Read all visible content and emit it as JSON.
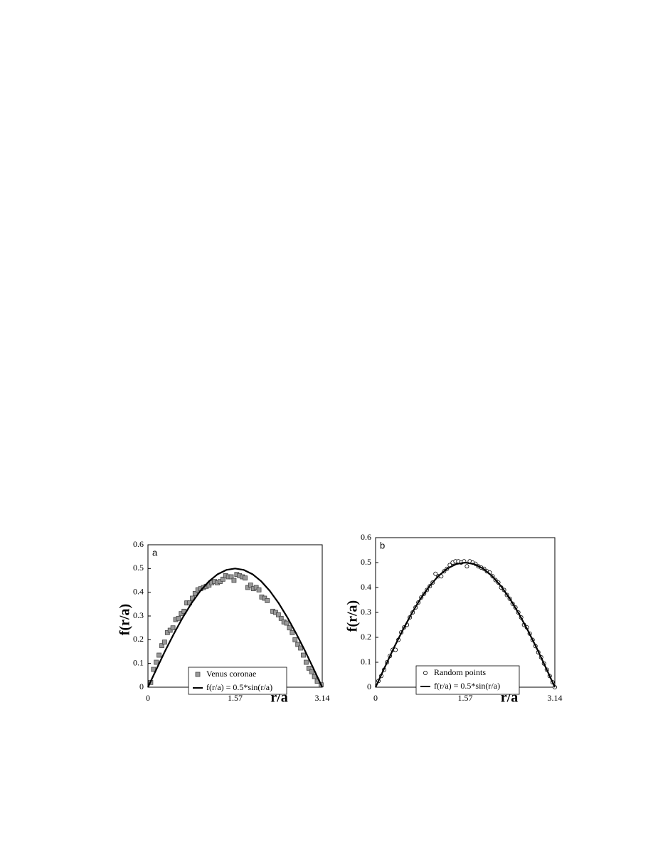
{
  "chart_data": [
    {
      "type": "scatter",
      "panel": "a",
      "x_label": "r/a",
      "y_label": "f(r/a)",
      "xlim": [
        0,
        3.14
      ],
      "xticks": [
        0,
        1.57,
        3.14
      ],
      "ylim": [
        0,
        0.6
      ],
      "yticks": [
        0,
        0.1,
        0.2,
        0.3,
        0.4,
        0.5,
        0.6
      ],
      "series": [
        {
          "name": "Venus coronae",
          "mark": "square",
          "color": "#999999",
          "x": [
            0.05,
            0.1,
            0.15,
            0.2,
            0.25,
            0.3,
            0.35,
            0.4,
            0.45,
            0.5,
            0.55,
            0.6,
            0.65,
            0.7,
            0.75,
            0.8,
            0.85,
            0.9,
            0.95,
            1.0,
            1.05,
            1.1,
            1.15,
            1.2,
            1.25,
            1.3,
            1.35,
            1.4,
            1.45,
            1.5,
            1.55,
            1.6,
            1.65,
            1.7,
            1.75,
            1.8,
            1.85,
            1.9,
            1.95,
            2.0,
            2.05,
            2.1,
            2.15,
            2.25,
            2.3,
            2.35,
            2.4,
            2.45,
            2.5,
            2.55,
            2.6,
            2.65,
            2.7,
            2.75,
            2.8,
            2.85,
            2.9,
            2.95,
            3.0,
            3.05,
            3.12
          ],
          "values": [
            0.02,
            0.075,
            0.105,
            0.135,
            0.175,
            0.19,
            0.23,
            0.24,
            0.25,
            0.285,
            0.29,
            0.31,
            0.32,
            0.355,
            0.355,
            0.375,
            0.395,
            0.41,
            0.415,
            0.42,
            0.425,
            0.43,
            0.44,
            0.445,
            0.44,
            0.445,
            0.455,
            0.47,
            0.465,
            0.465,
            0.45,
            0.475,
            0.47,
            0.465,
            0.46,
            0.42,
            0.43,
            0.415,
            0.42,
            0.41,
            0.38,
            0.375,
            0.365,
            0.32,
            0.315,
            0.305,
            0.29,
            0.275,
            0.27,
            0.25,
            0.23,
            0.2,
            0.18,
            0.165,
            0.135,
            0.105,
            0.08,
            0.065,
            0.045,
            0.025,
            0.01
          ]
        },
        {
          "name": "f(r/a) = 0.5*sin(r/a)",
          "mark": "line",
          "color": "#000000",
          "x": [
            0,
            0.157,
            0.314,
            0.471,
            0.628,
            0.785,
            0.942,
            1.099,
            1.256,
            1.413,
            1.57,
            1.727,
            1.884,
            2.041,
            2.198,
            2.355,
            2.512,
            2.669,
            2.826,
            2.983,
            3.14
          ],
          "values": [
            0,
            0.078,
            0.155,
            0.227,
            0.294,
            0.354,
            0.405,
            0.446,
            0.476,
            0.494,
            0.5,
            0.494,
            0.476,
            0.446,
            0.405,
            0.354,
            0.294,
            0.227,
            0.155,
            0.078,
            0
          ]
        }
      ]
    },
    {
      "type": "scatter",
      "panel": "b",
      "x_label": "r/a",
      "y_label": "f(r/a)",
      "xlim": [
        0,
        3.14
      ],
      "xticks": [
        0,
        1.57,
        3.14
      ],
      "ylim": [
        0,
        0.6
      ],
      "yticks": [
        0,
        0.1,
        0.2,
        0.3,
        0.4,
        0.5,
        0.6
      ],
      "series": [
        {
          "name": "Random points",
          "mark": "circle",
          "color": "#000000",
          "x": [
            0.05,
            0.1,
            0.15,
            0.2,
            0.25,
            0.3,
            0.35,
            0.4,
            0.45,
            0.5,
            0.55,
            0.6,
            0.65,
            0.7,
            0.75,
            0.8,
            0.85,
            0.9,
            0.95,
            1.0,
            1.05,
            1.1,
            1.15,
            1.2,
            1.25,
            1.3,
            1.35,
            1.4,
            1.45,
            1.5,
            1.55,
            1.6,
            1.65,
            1.7,
            1.75,
            1.8,
            1.85,
            1.9,
            1.95,
            2.0,
            2.05,
            2.1,
            2.15,
            2.2,
            2.25,
            2.3,
            2.35,
            2.4,
            2.45,
            2.5,
            2.55,
            2.6,
            2.65,
            2.7,
            2.75,
            2.8,
            2.85,
            2.9,
            2.95,
            3.0,
            3.05,
            3.1,
            3.14
          ],
          "values": [
            0.025,
            0.045,
            0.07,
            0.1,
            0.125,
            0.15,
            0.15,
            0.19,
            0.22,
            0.24,
            0.25,
            0.28,
            0.3,
            0.32,
            0.34,
            0.36,
            0.375,
            0.39,
            0.405,
            0.42,
            0.455,
            0.445,
            0.445,
            0.465,
            0.475,
            0.49,
            0.5,
            0.505,
            0.505,
            0.5,
            0.505,
            0.485,
            0.505,
            0.5,
            0.495,
            0.485,
            0.48,
            0.475,
            0.465,
            0.46,
            0.445,
            0.43,
            0.42,
            0.4,
            0.39,
            0.37,
            0.355,
            0.335,
            0.32,
            0.3,
            0.28,
            0.25,
            0.24,
            0.215,
            0.19,
            0.165,
            0.14,
            0.12,
            0.095,
            0.07,
            0.045,
            0.02,
            0
          ]
        },
        {
          "name": "f(r/a) = 0.5*sin(r/a)",
          "mark": "line",
          "color": "#000000",
          "x": [
            0,
            0.157,
            0.314,
            0.471,
            0.628,
            0.785,
            0.942,
            1.099,
            1.256,
            1.413,
            1.57,
            1.727,
            1.884,
            2.041,
            2.198,
            2.355,
            2.512,
            2.669,
            2.826,
            2.983,
            3.14
          ],
          "values": [
            0,
            0.078,
            0.155,
            0.227,
            0.294,
            0.354,
            0.405,
            0.446,
            0.476,
            0.494,
            0.5,
            0.494,
            0.476,
            0.446,
            0.405,
            0.354,
            0.294,
            0.227,
            0.155,
            0.078,
            0
          ]
        }
      ]
    }
  ]
}
